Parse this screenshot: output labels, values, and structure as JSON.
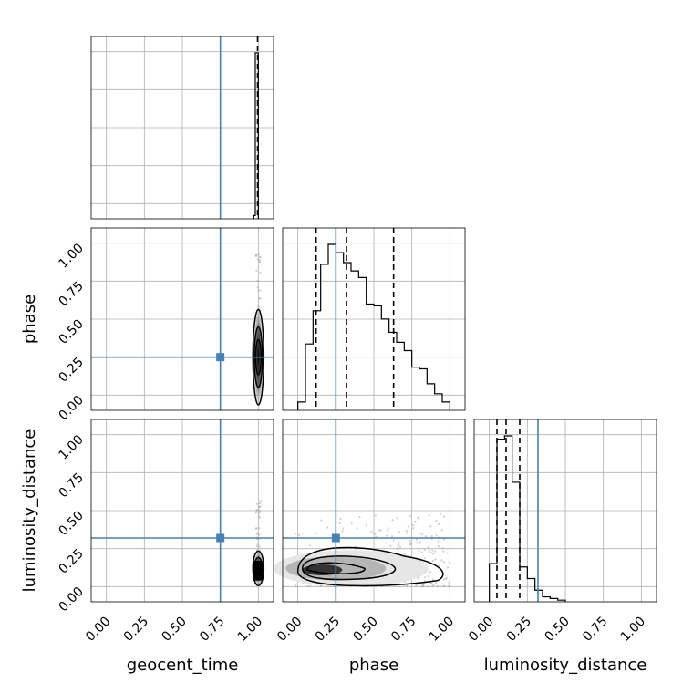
{
  "chart_data": {
    "type": "corner",
    "parameters": [
      "geocent_time",
      "phase",
      "luminosity_distance"
    ],
    "axis_range": [
      -0.1,
      1.1
    ],
    "ticks": [
      0.0,
      0.25,
      0.5,
      0.75,
      1.0
    ],
    "tick_labels": [
      "0.00",
      "0.25",
      "0.50",
      "0.75",
      "1.00"
    ],
    "truths": {
      "geocent_time": 0.75,
      "phase": 0.25,
      "luminosity_distance": 0.32
    },
    "truth_color": "#4682b4",
    "grid": true,
    "marginals": {
      "geocent_time": {
        "bins": [
          0.97,
          0.98,
          0.99,
          1.0
        ],
        "heights": [
          0.02,
          1.0,
          1.0
        ],
        "quantiles": [
          0.995
        ]
      },
      "phase": {
        "bins": [
          0.0,
          0.05,
          0.1,
          0.15,
          0.2,
          0.25,
          0.3,
          0.35,
          0.4,
          0.45,
          0.5,
          0.55,
          0.6,
          0.65,
          0.7,
          0.75,
          0.8,
          0.85,
          0.9,
          0.95,
          1.0
        ],
        "heights": [
          0.05,
          0.4,
          0.6,
          0.88,
          1.0,
          0.95,
          0.89,
          0.84,
          0.8,
          0.64,
          0.63,
          0.55,
          0.47,
          0.41,
          0.36,
          0.26,
          0.25,
          0.16,
          0.1,
          0.05
        ],
        "quantiles": [
          0.12,
          0.32,
          0.63
        ]
      },
      "luminosity_distance": {
        "bins": [
          0.0,
          0.05,
          0.1,
          0.15,
          0.2,
          0.25,
          0.3,
          0.35,
          0.4,
          0.45,
          0.5
        ],
        "heights": [
          0.23,
          0.98,
          1.0,
          0.72,
          0.21,
          0.14,
          0.07,
          0.03,
          0.02,
          0.01
        ],
        "quantiles": [
          0.05,
          0.11,
          0.2
        ]
      }
    },
    "joint": [
      {
        "x": "geocent_time",
        "y": "phase",
        "density_center": [
          1.0,
          0.25
        ],
        "contour_levels": 3
      },
      {
        "x": "geocent_time",
        "y": "luminosity_distance",
        "density_center": [
          1.0,
          0.1
        ],
        "contour_levels": 3
      },
      {
        "x": "phase",
        "y": "luminosity_distance",
        "density_center": [
          0.15,
          0.11
        ],
        "contour_levels": 3
      }
    ]
  }
}
